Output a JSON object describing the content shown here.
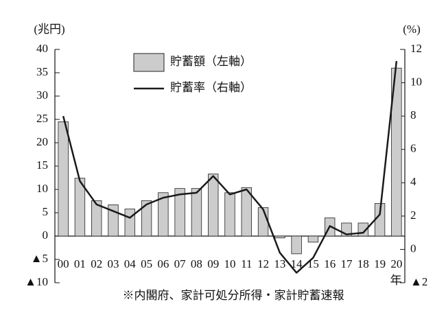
{
  "chart_data": {
    "type": "bar",
    "y_label": "(兆円)",
    "y2_label": "(%)",
    "x_label": "年",
    "note": "※内閣府、家計可処分所得・家計貯蓄速報",
    "categories": [
      "00",
      "01",
      "02",
      "03",
      "04",
      "05",
      "06",
      "07",
      "08",
      "09",
      "10",
      "11",
      "12",
      "13",
      "14",
      "15",
      "16",
      "17",
      "18",
      "19",
      "20"
    ],
    "series": [
      {
        "name": "貯蓄額（左軸）",
        "type": "bar",
        "color": "#cccccc",
        "values": [
          24.5,
          12.4,
          7.6,
          6.7,
          5.8,
          7.6,
          9.3,
          10.2,
          10.2,
          13.3,
          9.3,
          10.4,
          6.1,
          -0.4,
          -3.8,
          -1.3,
          3.9,
          2.8,
          2.8,
          7.0,
          36.0
        ]
      },
      {
        "name": "貯蓄率（右軸）",
        "type": "line",
        "axis": "y2",
        "color": "#1a1a1a",
        "values": [
          8.0,
          4.1,
          2.7,
          2.3,
          1.9,
          2.7,
          3.1,
          3.3,
          3.4,
          4.4,
          3.3,
          3.6,
          2.4,
          -0.2,
          -1.4,
          -0.5,
          1.4,
          0.9,
          1.0,
          2.1,
          11.3
        ]
      }
    ],
    "ylim": [
      -10,
      40
    ],
    "yticks": [
      {
        "value": -10,
        "label": "▲10"
      },
      {
        "value": -5,
        "label": "▲5"
      },
      0,
      5,
      10,
      15,
      20,
      25,
      30,
      35,
      40
    ],
    "y2lim": [
      -2,
      12
    ],
    "y2ticks": [
      {
        "value": -2,
        "label": "▲2"
      },
      0,
      2,
      4,
      6,
      8,
      10,
      12
    ]
  }
}
